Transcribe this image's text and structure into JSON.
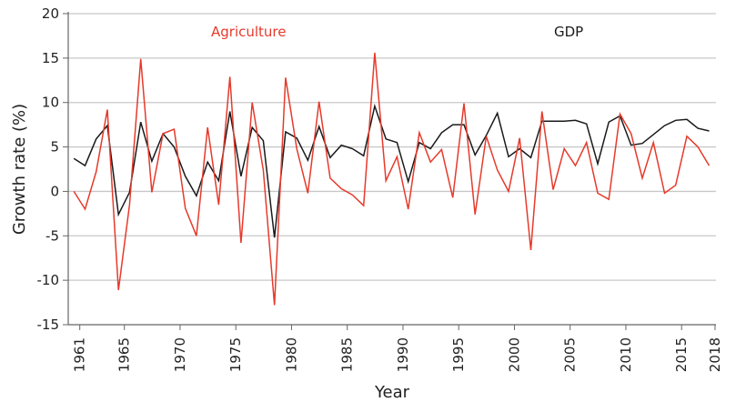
{
  "chart_data": {
    "type": "line",
    "xlabel": "Year",
    "ylabel": "Growth rate (%)",
    "ylim": [
      -15,
      20
    ],
    "yticks": [
      20,
      15,
      10,
      5,
      0,
      -5,
      -10,
      -15
    ],
    "xlim": [
      1961,
      2018
    ],
    "xticks": [
      1961,
      1965,
      1970,
      1975,
      1980,
      1985,
      1990,
      1995,
      2000,
      2005,
      2010,
      2015,
      2018
    ],
    "grid": "horizontal",
    "x": [
      1961,
      1962,
      1963,
      1964,
      1965,
      1966,
      1967,
      1968,
      1969,
      1970,
      1971,
      1972,
      1973,
      1974,
      1975,
      1976,
      1977,
      1978,
      1979,
      1980,
      1981,
      1982,
      1983,
      1984,
      1985,
      1986,
      1987,
      1988,
      1989,
      1990,
      1991,
      1992,
      1993,
      1994,
      1995,
      1996,
      1997,
      1998,
      1999,
      2000,
      2001,
      2002,
      2003,
      2004,
      2005,
      2006,
      2007,
      2008,
      2009,
      2010,
      2011,
      2012,
      2013,
      2014,
      2015,
      2016,
      2017,
      2018
    ],
    "series": [
      {
        "name": "Agriculture",
        "color": "#e63a2b",
        "values": [
          0,
          -2.0,
          2.2,
          9.2,
          -11.1,
          -1.5,
          14.9,
          -0.1,
          6.5,
          7.0,
          -1.9,
          -5.0,
          7.2,
          -1.5,
          12.9,
          -5.8,
          10.0,
          2.4,
          -12.8,
          12.8,
          4.8,
          -0.2,
          10.1,
          1.5,
          0.3,
          -0.4,
          -1.6,
          15.6,
          1.2,
          3.9,
          -2.0,
          6.6,
          3.3,
          4.7,
          -0.7,
          9.9,
          -2.6,
          6.2,
          2.4,
          0,
          6.0,
          -6.6,
          9.0,
          0.2,
          4.8,
          2.9,
          5.5,
          -0.2,
          -0.9,
          8.7,
          6.5,
          1.5,
          5.5,
          -0.2,
          0.7,
          6.2,
          5.0,
          2.9
        ]
      },
      {
        "name": "GDP",
        "color": "#1a1a1a",
        "values": [
          3.7,
          2.9,
          5.9,
          7.4,
          -2.6,
          -0.1,
          7.8,
          3.4,
          6.5,
          5.0,
          1.7,
          -0.5,
          3.3,
          1.2,
          9.0,
          1.7,
          7.2,
          5.7,
          -5.2,
          6.7,
          6.0,
          3.5,
          7.3,
          3.8,
          5.2,
          4.8,
          4.0,
          9.6,
          5.9,
          5.5,
          1.1,
          5.5,
          4.8,
          6.6,
          7.5,
          7.5,
          4.1,
          6.3,
          8.8,
          3.9,
          4.8,
          3.8,
          7.9,
          7.9,
          7.9,
          8.0,
          7.6,
          3.1,
          7.8,
          8.5,
          5.2,
          5.4,
          6.4,
          7.4,
          8.0,
          8.1,
          7.1,
          6.8
        ]
      }
    ]
  }
}
